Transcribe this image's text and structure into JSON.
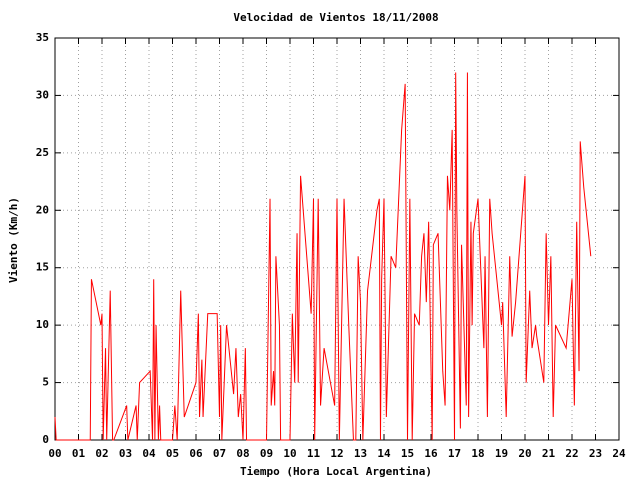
{
  "chart_data": {
    "type": "line",
    "title": "Velocidad de Vientos 18/11/2008",
    "x_label": "Tiempo (Hora Local Argentina)",
    "y_label": "Viento (Km/h)",
    "color": "#ff0000",
    "grid": true,
    "xlim": [
      0,
      24
    ],
    "xticks": [
      {
        "value": 0,
        "label": "00"
      },
      {
        "value": 1,
        "label": "01"
      },
      {
        "value": 2,
        "label": "02"
      },
      {
        "value": 3,
        "label": "03"
      },
      {
        "value": 4,
        "label": "04"
      },
      {
        "value": 5,
        "label": "05"
      },
      {
        "value": 6,
        "label": "06"
      },
      {
        "value": 7,
        "label": "07"
      },
      {
        "value": 8,
        "label": "08"
      },
      {
        "value": 9,
        "label": "09"
      },
      10,
      11,
      12,
      13,
      14,
      15,
      16,
      17,
      18,
      19,
      20,
      21,
      22,
      23,
      24
    ],
    "ylim": [
      0,
      35
    ],
    "yticks": [
      0,
      5,
      10,
      15,
      20,
      25,
      30,
      35
    ],
    "x": [
      0,
      0.05,
      1.5,
      1.55,
      1.95,
      2.0,
      2.05,
      2.15,
      2.2,
      2.35,
      2.45,
      2.5,
      3.05,
      3.1,
      3.45,
      3.5,
      3.6,
      4.05,
      4.15,
      4.2,
      4.25,
      4.3,
      4.4,
      4.45,
      4.5,
      5.0,
      5.1,
      5.2,
      5.35,
      5.5,
      6.0,
      6.1,
      6.15,
      6.25,
      6.3,
      6.5,
      6.9,
      7.0,
      7.05,
      7.1,
      7.3,
      7.4,
      7.6,
      7.7,
      7.8,
      7.9,
      8.0,
      8.1,
      8.15,
      9.0,
      9.15,
      9.2,
      9.3,
      9.35,
      9.4,
      9.55,
      9.6,
      10.0,
      10.1,
      10.2,
      10.3,
      10.35,
      10.45,
      10.9,
      11.0,
      11.05,
      11.2,
      11.3,
      11.45,
      11.9,
      12.0,
      12.1,
      12.3,
      12.5,
      12.7,
      12.8,
      12.9,
      13.0,
      13.1,
      13.3,
      13.7,
      13.8,
      13.85,
      13.9,
      14.0,
      14.1,
      14.3,
      14.5,
      14.75,
      14.9,
      15.0,
      15.1,
      15.2,
      15.3,
      15.5,
      15.6,
      15.7,
      15.8,
      15.9,
      16.05,
      16.1,
      16.3,
      16.5,
      16.6,
      16.7,
      16.8,
      16.9,
      17.0,
      17.05,
      17.1,
      17.25,
      17.3,
      17.5,
      17.55,
      17.6,
      17.7,
      17.75,
      17.8,
      18.0,
      18.25,
      18.3,
      18.4,
      18.5,
      18.6,
      19.0,
      19.05,
      19.2,
      19.35,
      19.45,
      19.6,
      20.0,
      20.05,
      20.2,
      20.3,
      20.45,
      20.5,
      20.8,
      20.9,
      21.0,
      21.1,
      21.2,
      21.3,
      21.75,
      22.0,
      22.1,
      22.2,
      22.3,
      22.35,
      22.5,
      22.8
    ],
    "values": [
      2,
      0,
      0,
      14,
      10,
      11,
      0,
      8,
      0,
      13,
      0,
      0,
      3,
      0,
      3,
      0,
      5,
      6,
      0,
      14,
      0,
      10,
      0,
      3,
      0,
      0,
      3,
      0,
      13,
      2,
      5,
      11,
      2,
      7,
      2,
      11,
      11,
      2,
      10,
      0,
      10,
      8,
      4,
      8,
      2,
      4,
      0,
      8,
      0,
      0,
      21,
      3,
      6,
      3,
      16,
      10,
      0,
      0,
      11,
      5,
      18,
      5,
      23,
      11,
      21,
      0,
      21,
      3,
      8,
      3,
      21,
      0,
      21,
      10,
      0,
      0,
      16,
      12,
      0,
      13,
      20,
      21,
      0,
      14,
      21,
      2,
      16,
      15,
      27,
      31,
      0,
      21,
      0,
      11,
      10,
      16,
      18,
      12,
      19,
      0,
      17,
      18,
      6,
      3,
      23,
      20,
      27,
      0,
      32,
      20,
      1,
      17,
      3,
      32,
      2,
      19,
      10,
      18,
      21,
      8,
      16,
      2,
      21,
      18,
      10,
      12,
      2,
      16,
      9,
      12,
      23,
      5,
      13,
      8,
      10,
      9,
      5,
      18,
      10,
      16,
      2,
      10,
      8,
      14,
      3,
      19,
      6,
      26,
      22,
      16
    ]
  }
}
